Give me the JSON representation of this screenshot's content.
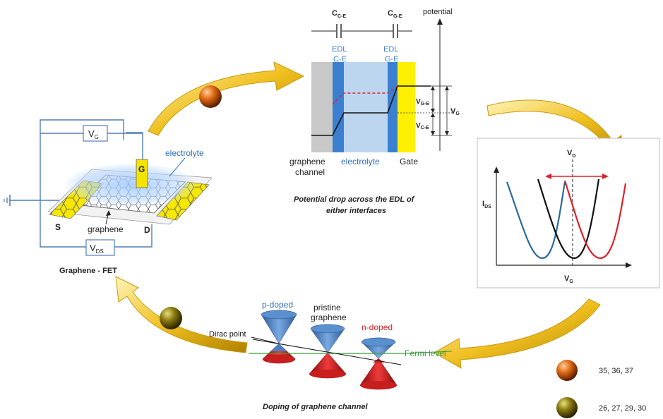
{
  "fet": {
    "vg": "V",
    "vg_sub": "G",
    "vds": "V",
    "vds_sub": "DS",
    "gate": "G",
    "electrolyte": "electrolyte",
    "source": "S",
    "drain": "D",
    "graphene": "graphene",
    "caption": "Graphene - FET"
  },
  "edl": {
    "c_ce": "C",
    "c_ce_sub": "C-E",
    "c_ge": "C",
    "c_ge_sub": "G-E",
    "potential": "potential",
    "edl1_line1": "EDL",
    "edl1_line2": "C-E",
    "edl2_line1": "EDL",
    "edl2_line2": "G-E",
    "v_ge": "V",
    "v_ge_sub": "G-E",
    "v_ce": "V",
    "v_ce_sub": "C-E",
    "v_g": "V",
    "v_g_sub": "G",
    "graphene_line1": "graphene",
    "graphene_line2": "channel",
    "electrolyte": "electrolyte",
    "gate": "Gate",
    "caption_line1": "Potential drop across the EDL of",
    "caption_line2": "either interfaces"
  },
  "transfer": {
    "vd": "V",
    "vd_sub": "D",
    "ids": "I",
    "ids_sub": "DS",
    "vg": "V",
    "vg_sub": "G"
  },
  "doping": {
    "p_doped": "p-doped",
    "pristine_line1": "pristine",
    "pristine_line2": "graphene",
    "n_doped": "n-doped",
    "dirac_point": "Dirac point",
    "fermi_level": "Fermi level",
    "caption": "Doping of graphene channel"
  },
  "legend": {
    "orange_refs": "35, 36, 37",
    "olive_refs": "26, 27, 29, 30"
  },
  "colors": {
    "arrow": "#e6b31c",
    "blue_curve": "#2e6b99",
    "red": "#e0202a",
    "edl_blue": "#3b7fd0",
    "electrolyte": "#bcd6f0",
    "gate_yellow": "#ffef00",
    "cone_blue": "#4a7fbf",
    "cone_red": "#c81e1e",
    "fermi_green": "#3c9a3c"
  }
}
